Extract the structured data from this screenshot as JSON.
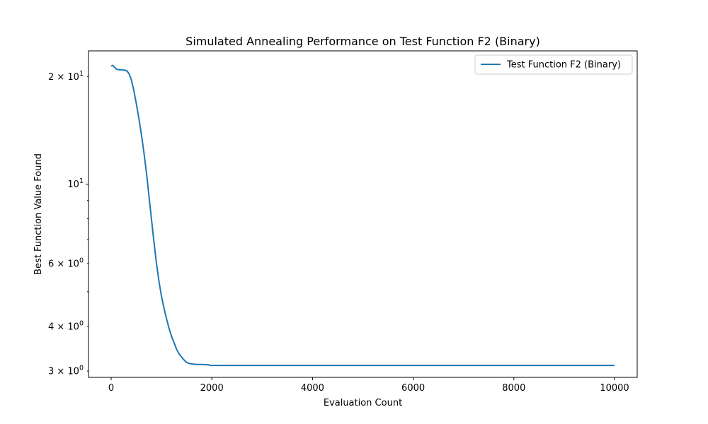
{
  "chart_data": {
    "type": "line",
    "title": "Simulated Annealing Performance on Test Function F2 (Binary)",
    "xlabel": "Evaluation Count",
    "ylabel": "Best Function Value Found",
    "xlim": [
      -450,
      10450
    ],
    "ylim": [
      2.88,
      23.6
    ],
    "yscale": "log",
    "grid": false,
    "legend_position": "top-right",
    "x_ticks": [
      {
        "value": 0,
        "label": "0"
      },
      {
        "value": 2000,
        "label": "2000"
      },
      {
        "value": 4000,
        "label": "4000"
      },
      {
        "value": 6000,
        "label": "6000"
      },
      {
        "value": 8000,
        "label": "8000"
      },
      {
        "value": 10000,
        "label": "10000"
      }
    ],
    "y_major_ticks": [
      {
        "value": 10,
        "base": "10",
        "exp": "1",
        "prefix": ""
      }
    ],
    "y_minor_ticks": [
      {
        "value": 3,
        "base": "10",
        "exp": "0",
        "prefix": "3 × "
      },
      {
        "value": 4,
        "base": "10",
        "exp": "0",
        "prefix": "4 × "
      },
      {
        "value": 5,
        "base": "",
        "exp": "",
        "prefix": ""
      },
      {
        "value": 6,
        "base": "10",
        "exp": "0",
        "prefix": "6 × "
      },
      {
        "value": 7,
        "base": "",
        "exp": "",
        "prefix": ""
      },
      {
        "value": 8,
        "base": "",
        "exp": "",
        "prefix": ""
      },
      {
        "value": 9,
        "base": "",
        "exp": "",
        "prefix": ""
      },
      {
        "value": 20,
        "base": "10",
        "exp": "1",
        "prefix": "2 × "
      }
    ],
    "series": [
      {
        "name": "Test Function F2 (Binary)",
        "color": "#1f77b4",
        "x": [
          0,
          30,
          60,
          100,
          150,
          200,
          250,
          300,
          330,
          360,
          400,
          450,
          500,
          550,
          600,
          650,
          700,
          750,
          800,
          850,
          900,
          950,
          1000,
          1050,
          1100,
          1150,
          1200,
          1250,
          1300,
          1350,
          1400,
          1450,
          1500,
          1550,
          1600,
          1650,
          1700,
          1800,
          1950,
          1960,
          2000,
          3000,
          4000,
          5000,
          6000,
          7000,
          8000,
          9000,
          10000
        ],
        "y": [
          21.4,
          21.5,
          21.3,
          21.0,
          20.9,
          20.9,
          20.85,
          20.8,
          20.6,
          20.3,
          19.6,
          18.3,
          16.8,
          15.3,
          13.8,
          12.3,
          10.8,
          9.3,
          8.0,
          6.9,
          6.0,
          5.35,
          4.85,
          4.5,
          4.2,
          3.95,
          3.75,
          3.6,
          3.45,
          3.35,
          3.28,
          3.22,
          3.17,
          3.15,
          3.14,
          3.135,
          3.13,
          3.13,
          3.12,
          3.11,
          3.11,
          3.11,
          3.11,
          3.11,
          3.11,
          3.11,
          3.11,
          3.11,
          3.11
        ]
      }
    ]
  }
}
